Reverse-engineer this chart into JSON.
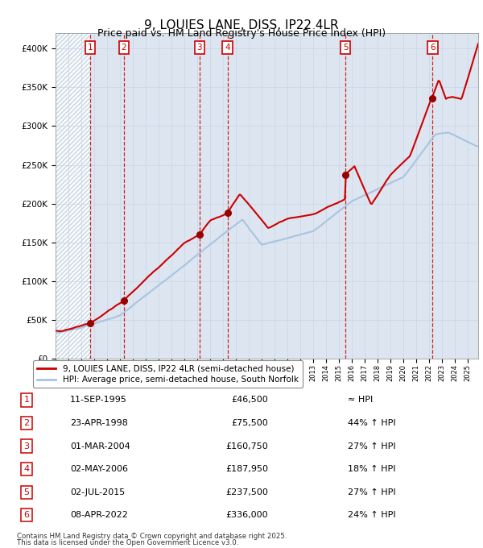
{
  "title": "9, LOUIES LANE, DISS, IP22 4LR",
  "subtitle": "Price paid vs. HM Land Registry's House Price Index (HPI)",
  "legend_line1": "9, LOUIES LANE, DISS, IP22 4LR (semi-detached house)",
  "legend_line2": "HPI: Average price, semi-detached house, South Norfolk",
  "footer1": "Contains HM Land Registry data © Crown copyright and database right 2025.",
  "footer2": "This data is licensed under the Open Government Licence v3.0.",
  "sale_dates_num": [
    1995.69,
    1998.31,
    2004.17,
    2006.34,
    2015.5,
    2022.27
  ],
  "sale_prices": [
    46500,
    75500,
    160750,
    187950,
    237500,
    336000
  ],
  "sale_labels": [
    "1",
    "2",
    "3",
    "4",
    "5",
    "6"
  ],
  "sale_dates_str": [
    "11-SEP-1995",
    "23-APR-1998",
    "01-MAR-2004",
    "02-MAY-2006",
    "02-JUL-2015",
    "08-APR-2022"
  ],
  "sale_hpi_rel": [
    "≈ HPI",
    "44% ↑ HPI",
    "27% ↑ HPI",
    "18% ↑ HPI",
    "27% ↑ HPI",
    "24% ↑ HPI"
  ],
  "sale_prices_str": [
    "£46,500",
    "£75,500",
    "£160,750",
    "£187,950",
    "£237,500",
    "£336,000"
  ],
  "hpi_color": "#a8c4e0",
  "price_color": "#cc0000",
  "marker_color": "#990000",
  "vline_color": "#cc0000",
  "box_color": "#cc0000",
  "hatch_color": "#c0cfe0",
  "grid_color": "#c8d4e8",
  "bg_color": "#dde6f0",
  "ylim": [
    0,
    420000
  ],
  "xlim_start": 1993.0,
  "xlim_end": 2025.8
}
